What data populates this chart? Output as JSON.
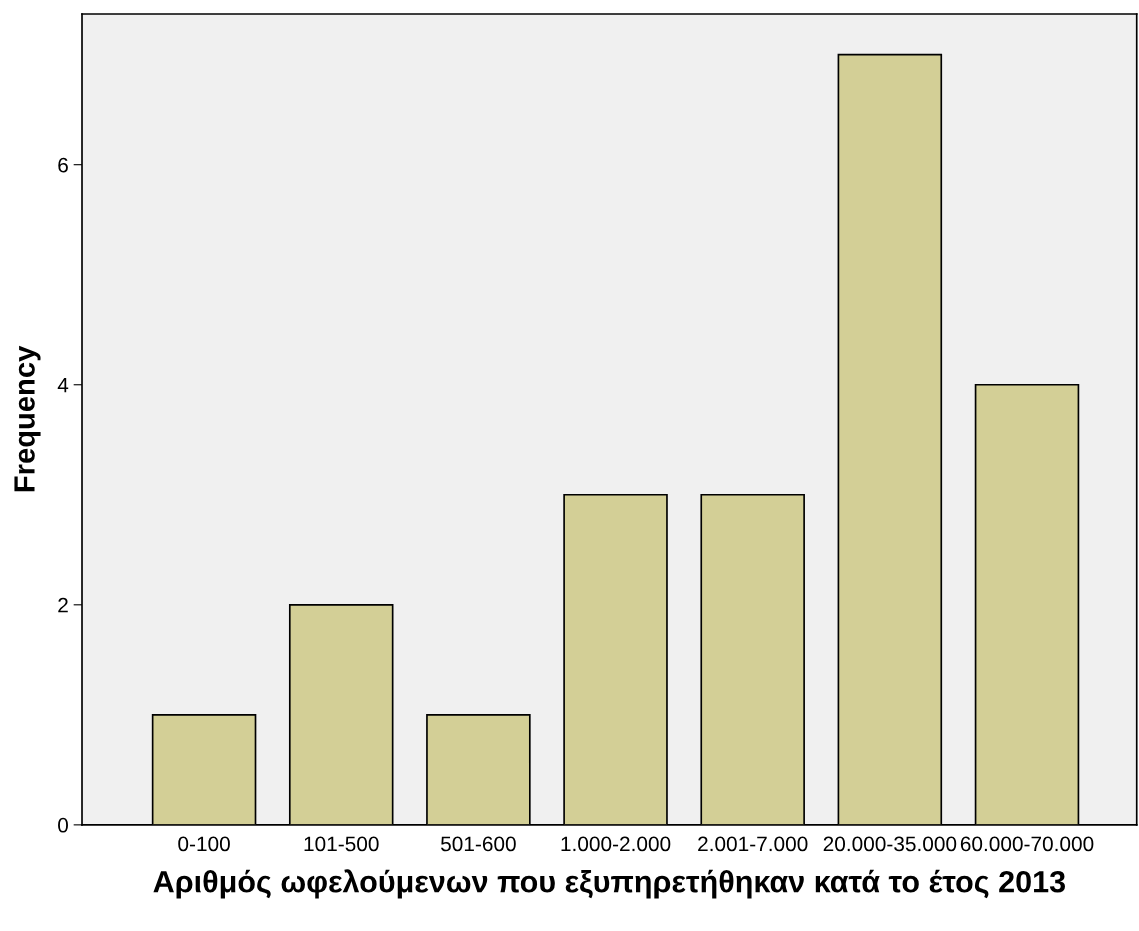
{
  "chart_data": {
    "type": "bar",
    "xlabel": "Αριθμός ωφελούμενων που εξυπηρετήθηκαν κατά το έτος 2013",
    "ylabel": "Frequency",
    "categories": [
      "0-100",
      "101-500",
      "501-600",
      "1.000-2.000",
      "2.001-7.000",
      "20.000-35.000",
      "60.000-70.000"
    ],
    "values": [
      1,
      2,
      1,
      3,
      3,
      7,
      4
    ],
    "color": "#d3cf96",
    "ylim": [
      0,
      7.37
    ],
    "yticks": [
      0,
      2,
      4,
      6
    ],
    "grid": false
  }
}
